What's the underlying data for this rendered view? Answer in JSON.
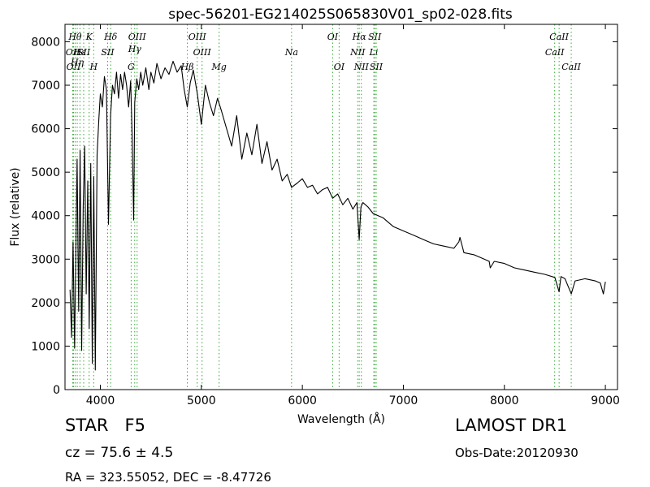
{
  "chart_data": {
    "type": "line",
    "title": "spec-56201-EG214025S065830V01_sp02-028.fits",
    "xlabel": "Wavelength (Å)",
    "ylabel": "Flux (relative)",
    "xlim": [
      3650,
      9120
    ],
    "ylim": [
      0,
      8400
    ],
    "xticks": [
      4000,
      5000,
      6000,
      7000,
      8000,
      9000
    ],
    "yticks": [
      0,
      1000,
      2000,
      3000,
      4000,
      5000,
      6000,
      7000,
      8000
    ],
    "grid": false,
    "line_color": "#000000",
    "marker_color": "#33aa33",
    "series": [
      {
        "values_x": [
          3700,
          3715,
          3730,
          3745,
          3760,
          3770,
          3785,
          3800,
          3815,
          3830,
          3845,
          3860,
          3875,
          3890,
          3905,
          3920,
          3935,
          3950,
          3968,
          3985,
          4000,
          4020,
          4040,
          4060,
          4080,
          4101,
          4120,
          4140,
          4160,
          4180,
          4200,
          4220,
          4240,
          4260,
          4280,
          4300,
          4315,
          4330,
          4340,
          4360,
          4380,
          4400,
          4420,
          4450,
          4480,
          4500,
          4530,
          4560,
          4600,
          4640,
          4680,
          4720,
          4760,
          4800,
          4830,
          4861,
          4890,
          4920,
          4960,
          5000,
          5040,
          5080,
          5120,
          5160,
          5200,
          5250,
          5300,
          5350,
          5400,
          5450,
          5500,
          5550,
          5600,
          5650,
          5700,
          5750,
          5800,
          5850,
          5893,
          5950,
          6000,
          6050,
          6100,
          6150,
          6200,
          6250,
          6300,
          6350,
          6400,
          6450,
          6500,
          6540,
          6563,
          6580,
          6600,
          6650,
          6700,
          6750,
          6800,
          6850,
          6900,
          6950,
          7000,
          7100,
          7200,
          7300,
          7400,
          7500,
          7550,
          7560,
          7600,
          7700,
          7800,
          7850,
          7860,
          7900,
          8000,
          8100,
          8200,
          8300,
          8400,
          8500,
          8542,
          8560,
          8600,
          8662,
          8700,
          8800,
          8900,
          8950,
          8980,
          9000
        ],
        "values_y": [
          2300,
          1200,
          3400,
          950,
          3600,
          5300,
          1800,
          5500,
          900,
          4200,
          5600,
          2200,
          4800,
          1400,
          5200,
          600,
          4900,
          450,
          5400,
          6200,
          6800,
          6500,
          7200,
          6900,
          3800,
          6300,
          7000,
          6800,
          7300,
          6700,
          7250,
          6900,
          7300,
          7000,
          6500,
          7100,
          5800,
          3900,
          6600,
          7150,
          6900,
          7300,
          7000,
          7400,
          6900,
          7300,
          7050,
          7500,
          7150,
          7400,
          7250,
          7550,
          7300,
          7450,
          6900,
          6500,
          7050,
          7350,
          6800,
          6100,
          7000,
          6600,
          6300,
          6700,
          6400,
          6000,
          5600,
          6300,
          5300,
          5900,
          5400,
          6100,
          5200,
          5700,
          5050,
          5300,
          4800,
          4950,
          4650,
          4750,
          4850,
          4650,
          4700,
          4500,
          4600,
          4650,
          4400,
          4500,
          4250,
          4400,
          4150,
          4300,
          3450,
          4200,
          4300,
          4200,
          4050,
          4000,
          3950,
          3850,
          3750,
          3700,
          3650,
          3550,
          3450,
          3350,
          3300,
          3250,
          3400,
          3500,
          3150,
          3100,
          3000,
          2950,
          2800,
          2950,
          2900,
          2800,
          2750,
          2700,
          2650,
          2580,
          2250,
          2600,
          2550,
          2200,
          2500,
          2550,
          2500,
          2450,
          2200,
          2480
        ]
      }
    ],
    "line_markers": [
      {
        "wavelength": 3727,
        "label": "OII",
        "row": 2
      },
      {
        "wavelength": 3734,
        "label": "OII",
        "row": 3
      },
      {
        "wavelength": 3750,
        "label": "Hθ",
        "row": 1
      },
      {
        "wavelength": 3771,
        "label": "Hη",
        "row": 2.7
      },
      {
        "wavelength": 3798,
        "label": "Hε",
        "row": 2
      },
      {
        "wavelength": 3835,
        "label": "SII",
        "row": 2
      },
      {
        "wavelength": 3889,
        "label": "K",
        "row": 1
      },
      {
        "wavelength": 3934,
        "label": "H",
        "row": 3
      },
      {
        "wavelength": 4072,
        "label": "SII",
        "row": 2
      },
      {
        "wavelength": 4102,
        "label": "Hδ",
        "row": 1
      },
      {
        "wavelength": 4305,
        "label": "G",
        "row": 3
      },
      {
        "wavelength": 4340,
        "label": "Hγ",
        "row": 1.8
      },
      {
        "wavelength": 4364,
        "label": "OIII",
        "row": 1
      },
      {
        "wavelength": 4861,
        "label": "Hβ",
        "row": 3
      },
      {
        "wavelength": 4959,
        "label": "OIII",
        "row": 1
      },
      {
        "wavelength": 5007,
        "label": "OIII",
        "row": 2
      },
      {
        "wavelength": 5176,
        "label": "Mg",
        "row": 3
      },
      {
        "wavelength": 5893,
        "label": "Na",
        "row": 2
      },
      {
        "wavelength": 6300,
        "label": "OI",
        "row": 1
      },
      {
        "wavelength": 6364,
        "label": "OI",
        "row": 3
      },
      {
        "wavelength": 6548,
        "label": "NII",
        "row": 2
      },
      {
        "wavelength": 6563,
        "label": "Hα",
        "row": 1
      },
      {
        "wavelength": 6584,
        "label": "NII",
        "row": 3
      },
      {
        "wavelength": 6707,
        "label": "Li",
        "row": 2
      },
      {
        "wavelength": 6717,
        "label": "SII",
        "row": 1
      },
      {
        "wavelength": 6731,
        "label": "SII",
        "row": 3
      },
      {
        "wavelength": 8498,
        "label": "CaII",
        "row": 2
      },
      {
        "wavelength": 8542,
        "label": "CaII",
        "row": 1
      },
      {
        "wavelength": 8662,
        "label": "CaII",
        "row": 3
      }
    ]
  },
  "info": {
    "class": "STAR",
    "subclass": "F5",
    "survey": "LAMOST DR1",
    "cz": "cz = 75.6  ± 4.5",
    "obs_date": "Obs-Date:20120930",
    "radec": "RA = 323.55052, DEC = -8.47726"
  }
}
